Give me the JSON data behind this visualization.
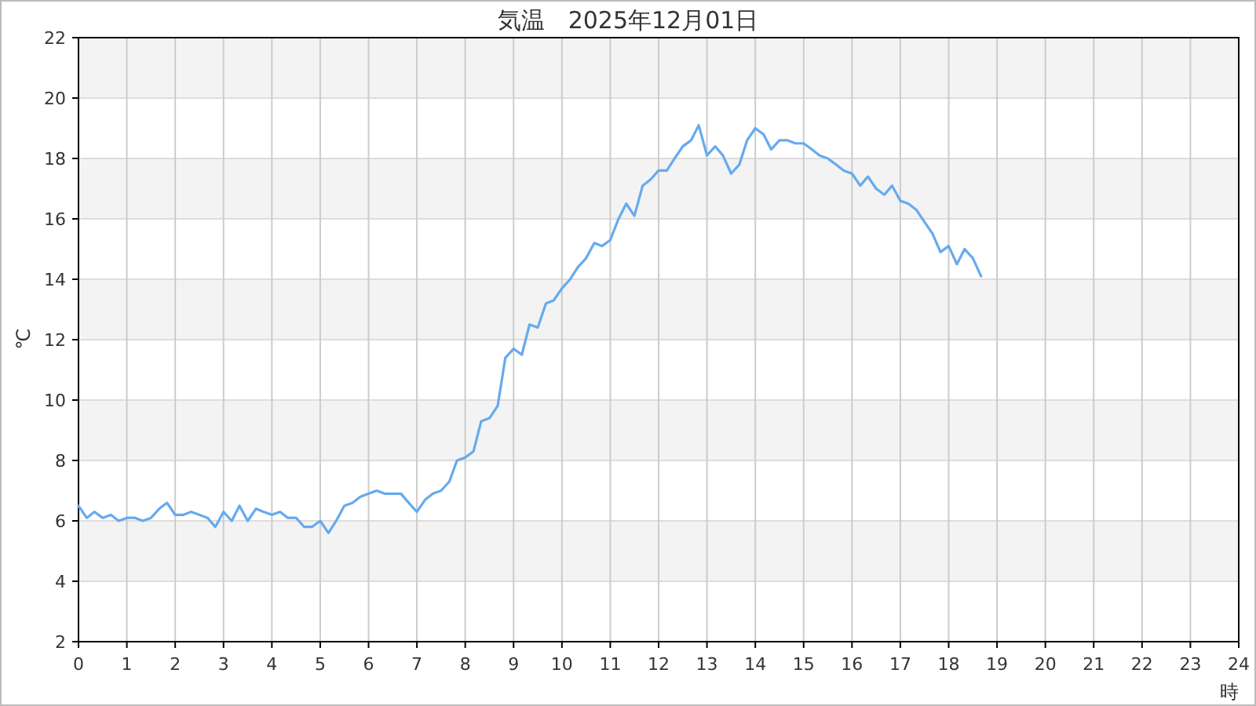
{
  "chart_data": {
    "type": "line",
    "title": "気温　2025年12月01日",
    "xlabel": "時",
    "ylabel": "℃",
    "xlim": [
      0,
      24
    ],
    "xticks": [
      0,
      1,
      2,
      3,
      4,
      5,
      6,
      7,
      8,
      9,
      10,
      11,
      12,
      13,
      14,
      15,
      16,
      17,
      18,
      19,
      20,
      21,
      22,
      23,
      24
    ],
    "ylim": [
      2,
      22
    ],
    "yticks": [
      2,
      4,
      6,
      8,
      10,
      12,
      14,
      16,
      18,
      20,
      22
    ],
    "grid": true,
    "marker": "none",
    "line_style": "solid",
    "series": [
      {
        "color": "#66aaee",
        "x": [
          0,
          0.17,
          0.33,
          0.5,
          0.67,
          0.83,
          1,
          1.17,
          1.33,
          1.5,
          1.67,
          1.83,
          2,
          2.17,
          2.33,
          2.5,
          2.67,
          2.83,
          3,
          3.17,
          3.33,
          3.5,
          3.67,
          3.83,
          4,
          4.17,
          4.33,
          4.5,
          4.67,
          4.83,
          5,
          5.17,
          5.33,
          5.5,
          5.67,
          5.83,
          6,
          6.17,
          6.33,
          6.5,
          6.67,
          6.83,
          7,
          7.17,
          7.33,
          7.5,
          7.67,
          7.83,
          8,
          8.17,
          8.33,
          8.5,
          8.67,
          8.83,
          9,
          9.17,
          9.33,
          9.5,
          9.67,
          9.83,
          10,
          10.17,
          10.33,
          10.5,
          10.67,
          10.83,
          11,
          11.17,
          11.33,
          11.5,
          11.67,
          11.83,
          12,
          12.17,
          12.33,
          12.5,
          12.67,
          12.83,
          13,
          13.17,
          13.33,
          13.5,
          13.67,
          13.83,
          14,
          14.17,
          14.33,
          14.5,
          14.67,
          14.83,
          15,
          15.17,
          15.33,
          15.5,
          15.67,
          15.83,
          16,
          16.17,
          16.33,
          16.5,
          16.67,
          16.83,
          17,
          17.17,
          17.33,
          17.5,
          17.67,
          17.83,
          18,
          18.17,
          18.33,
          18.5,
          18.67
        ],
        "values": [
          6.5,
          6.1,
          6.3,
          6.1,
          6.2,
          6.0,
          6.1,
          6.1,
          6.0,
          6.1,
          6.4,
          6.6,
          6.2,
          6.2,
          6.3,
          6.2,
          6.1,
          5.8,
          6.3,
          6.0,
          6.5,
          6.0,
          6.4,
          6.3,
          6.2,
          6.3,
          6.1,
          6.1,
          5.8,
          5.8,
          6.0,
          5.6,
          6.0,
          6.5,
          6.6,
          6.8,
          6.9,
          7.0,
          6.9,
          6.9,
          6.9,
          6.6,
          6.3,
          6.7,
          6.9,
          7.0,
          7.3,
          8.0,
          8.1,
          8.3,
          9.3,
          9.4,
          9.8,
          11.4,
          11.7,
          11.5,
          12.5,
          12.4,
          13.2,
          13.3,
          13.7,
          14.0,
          14.4,
          14.7,
          15.2,
          15.1,
          15.3,
          16.0,
          16.5,
          16.1,
          17.1,
          17.3,
          17.6,
          17.6,
          18.0,
          18.4,
          18.6,
          19.1,
          18.1,
          18.4,
          18.1,
          17.5,
          17.8,
          18.6,
          19.0,
          18.8,
          18.3,
          18.6,
          18.6,
          18.5,
          18.5,
          18.3,
          18.1,
          18.0,
          17.8,
          17.6,
          17.5,
          17.1,
          17.4,
          17.0,
          16.8,
          17.1,
          16.6,
          16.5,
          16.3,
          15.9,
          15.5,
          14.9,
          15.1,
          14.5,
          15.0,
          14.7,
          14.1
        ]
      }
    ]
  }
}
